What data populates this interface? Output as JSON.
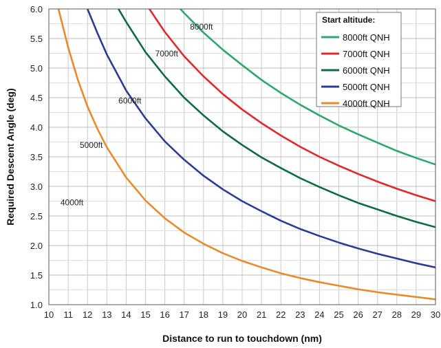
{
  "chart_data": {
    "type": "line",
    "xlabel": "Distance to run to touchdown (nm)",
    "ylabel": "Required Descent Angle (deg)",
    "xlim": [
      10,
      30
    ],
    "ylim": [
      1.0,
      6.0
    ],
    "x_ticks": [
      "10",
      "11",
      "12",
      "13",
      "14",
      "15",
      "16",
      "17",
      "18",
      "19",
      "20",
      "21",
      "22",
      "23",
      "24",
      "25",
      "26",
      "27",
      "28",
      "29",
      "30"
    ],
    "y_ticks": [
      "1.0",
      "1.5",
      "2.0",
      "2.5",
      "3.0",
      "3.5",
      "4.0",
      "4.5",
      "5.0",
      "5.5",
      "6.0"
    ],
    "grid": true,
    "legend": {
      "title": "Start altitude:",
      "placement": "top-right"
    },
    "series": [
      {
        "name": "8000ft QNH",
        "color": "#2aa86a",
        "curve_label": "8000ft",
        "label_at": [
          17.3,
          5.65
        ],
        "points": [
          [
            16.8,
            6.0
          ],
          [
            17,
            5.93
          ],
          [
            18,
            5.6
          ],
          [
            19,
            5.31
          ],
          [
            20,
            5.05
          ],
          [
            21,
            4.8
          ],
          [
            22,
            4.58
          ],
          [
            23,
            4.38
          ],
          [
            24,
            4.2
          ],
          [
            25,
            4.03
          ],
          [
            26,
            3.88
          ],
          [
            27,
            3.74
          ],
          [
            28,
            3.6
          ],
          [
            29,
            3.48
          ],
          [
            30,
            3.37
          ]
        ]
      },
      {
        "name": "7000ft QNH",
        "color": "#e32626",
        "curve_label": "7000ft",
        "label_at": [
          15.5,
          5.2
        ],
        "points": [
          [
            15.2,
            6.0
          ],
          [
            16,
            5.61
          ],
          [
            17,
            5.2
          ],
          [
            18,
            4.86
          ],
          [
            19,
            4.56
          ],
          [
            20,
            4.3
          ],
          [
            21,
            4.07
          ],
          [
            22,
            3.86
          ],
          [
            23,
            3.67
          ],
          [
            24,
            3.5
          ],
          [
            25,
            3.35
          ],
          [
            26,
            3.21
          ],
          [
            27,
            3.08
          ],
          [
            28,
            2.96
          ],
          [
            29,
            2.85
          ],
          [
            30,
            2.75
          ]
        ]
      },
      {
        "name": "6000ft QNH",
        "color": "#0c6b43",
        "curve_label": "6000ft",
        "label_at": [
          13.6,
          4.4
        ],
        "points": [
          [
            13.6,
            6.0
          ],
          [
            14,
            5.78
          ],
          [
            15,
            5.27
          ],
          [
            16,
            4.86
          ],
          [
            17,
            4.5
          ],
          [
            18,
            4.2
          ],
          [
            19,
            3.93
          ],
          [
            20,
            3.7
          ],
          [
            21,
            3.49
          ],
          [
            22,
            3.31
          ],
          [
            23,
            3.14
          ],
          [
            24,
            2.99
          ],
          [
            25,
            2.85
          ],
          [
            26,
            2.72
          ],
          [
            27,
            2.61
          ],
          [
            28,
            2.5
          ],
          [
            29,
            2.4
          ],
          [
            30,
            2.31
          ]
        ]
      },
      {
        "name": "5000ft QNH",
        "color": "#283c96",
        "curve_label": "5000ft",
        "label_at": [
          11.6,
          3.65
        ],
        "points": [
          [
            12.0,
            6.0
          ],
          [
            12.5,
            5.6
          ],
          [
            13,
            5.23
          ],
          [
            14,
            4.62
          ],
          [
            15,
            4.15
          ],
          [
            16,
            3.76
          ],
          [
            17,
            3.45
          ],
          [
            18,
            3.18
          ],
          [
            19,
            2.95
          ],
          [
            20,
            2.75
          ],
          [
            21,
            2.58
          ],
          [
            22,
            2.42
          ],
          [
            23,
            2.28
          ],
          [
            24,
            2.16
          ],
          [
            25,
            2.05
          ],
          [
            26,
            1.95
          ],
          [
            27,
            1.86
          ],
          [
            28,
            1.78
          ],
          [
            29,
            1.7
          ],
          [
            30,
            1.63
          ]
        ]
      },
      {
        "name": "4000ft QNH",
        "color": "#ea8a26",
        "curve_label": "4000ft",
        "label_at": [
          10.6,
          2.68
        ],
        "points": [
          [
            10.5,
            6.0
          ],
          [
            11,
            5.35
          ],
          [
            11.5,
            4.8
          ],
          [
            12,
            4.35
          ],
          [
            12.5,
            3.98
          ],
          [
            13,
            3.66
          ],
          [
            14,
            3.15
          ],
          [
            15,
            2.76
          ],
          [
            16,
            2.46
          ],
          [
            17,
            2.22
          ],
          [
            18,
            2.03
          ],
          [
            19,
            1.87
          ],
          [
            20,
            1.74
          ],
          [
            21,
            1.63
          ],
          [
            22,
            1.53
          ],
          [
            23,
            1.45
          ],
          [
            24,
            1.38
          ],
          [
            25,
            1.32
          ],
          [
            26,
            1.26
          ],
          [
            27,
            1.21
          ],
          [
            28,
            1.17
          ],
          [
            29,
            1.13
          ],
          [
            30,
            1.09
          ]
        ]
      }
    ]
  }
}
